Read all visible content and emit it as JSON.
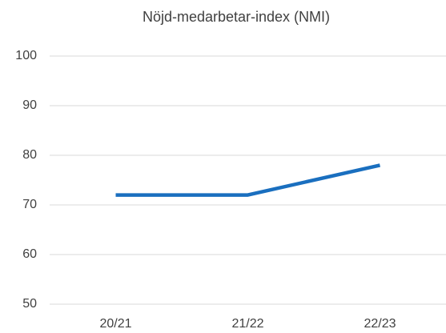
{
  "chart_data": {
    "type": "line",
    "title": "Nöjd-medarbetar-index (NMI)",
    "categories": [
      "20/21",
      "21/22",
      "22/23"
    ],
    "values": [
      72,
      72,
      78
    ],
    "color": "#1a6fbf",
    "ylim": [
      50,
      100
    ],
    "yticks": [
      50,
      60,
      70,
      80,
      90,
      100
    ],
    "grid": true
  }
}
